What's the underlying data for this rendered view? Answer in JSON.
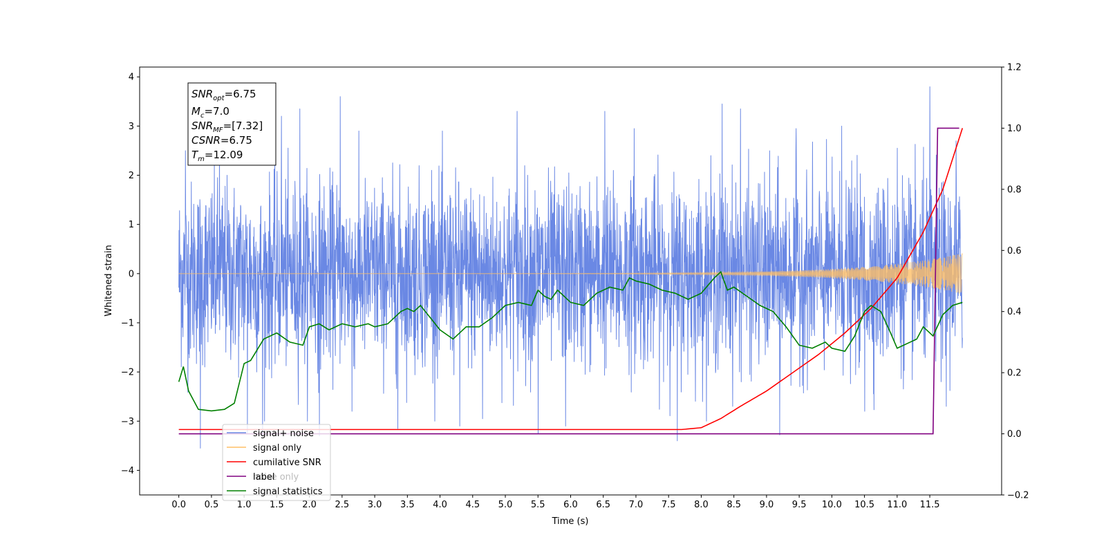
{
  "chart_data": {
    "type": "line",
    "xlabel": "Time (s)",
    "ylabel": "Whitened strain",
    "x_ticks": [
      "0.0",
      "0.5",
      "1.0",
      "1.5",
      "2.0",
      "2.5",
      "3.0",
      "3.5",
      "4.0",
      "4.5",
      "5.0",
      "5.5",
      "6.0",
      "6.5",
      "7.0",
      "7.5",
      "8.0",
      "8.5",
      "9.0",
      "9.5",
      "10.0",
      "10.5",
      "11.0",
      "11.5"
    ],
    "xlim": [
      -0.6,
      12.6
    ],
    "ylim_left": [
      -4.5,
      4.2
    ],
    "y_ticks_left": [
      "−4",
      "−3",
      "−2",
      "−1",
      "0",
      "1",
      "2",
      "3",
      "4"
    ],
    "ylim_right": [
      -0.2,
      1.2
    ],
    "y_ticks_right": [
      "−0.2",
      "0.0",
      "0.2",
      "0.4",
      "0.6",
      "0.8",
      "1.0",
      "1.2"
    ],
    "info_box": {
      "snr_opt": {
        "sym": "SNR",
        "sub": "opt",
        "value": "=6.75"
      },
      "mc": {
        "sym": "M",
        "sub": "c",
        "value": "=7.0"
      },
      "snr_mf": {
        "sym": "SNR",
        "sub": "MF",
        "value": "=[7.32]"
      },
      "csnr": {
        "sym": "CSNR",
        "sub": "",
        "value": "=6.75"
      },
      "tm": {
        "sym": "T",
        "sub": "m",
        "value": "=12.09"
      }
    },
    "legend": {
      "placement": "lower-left",
      "entries": [
        {
          "label": "signal+ noise",
          "color": "#6a88e4"
        },
        {
          "label": "signal only",
          "color": "#ffbf66"
        },
        {
          "label": "cumilative SNR",
          "color": "#ff0000"
        },
        {
          "label": "label",
          "color": "#800080"
        },
        {
          "label": "signal statistics",
          "color": "#008000"
        }
      ],
      "behind_text": [
        {
          "label": "noise only",
          "color": "#aaaaaa"
        }
      ]
    },
    "series": [
      {
        "name": "signal+ noise",
        "axis": "left",
        "color": "#6a88e4",
        "t_start": 0.0,
        "t_end": 12.0,
        "std": 0.92,
        "peaks": [
          [
            0.1,
            2.5
          ],
          [
            0.33,
            -3.55
          ],
          [
            0.62,
            2.95
          ],
          [
            1.05,
            -3.25
          ],
          [
            1.28,
            -3.3
          ],
          [
            1.57,
            3.2
          ],
          [
            1.85,
            3.35
          ],
          [
            2.15,
            -3.3
          ],
          [
            2.47,
            3.6
          ],
          [
            2.65,
            -2.8
          ],
          [
            3.35,
            -3.15
          ],
          [
            3.87,
            2.1
          ],
          [
            4.3,
            -3.1
          ],
          [
            4.65,
            -2.95
          ],
          [
            5.18,
            3.3
          ],
          [
            5.5,
            -3.25
          ],
          [
            5.92,
            -3.1
          ],
          [
            6.52,
            3.3
          ],
          [
            6.97,
            2.95
          ],
          [
            7.63,
            -3.4
          ],
          [
            8.32,
            3.45
          ],
          [
            8.6,
            3.35
          ],
          [
            9.2,
            -3.28
          ],
          [
            9.45,
            2.95
          ],
          [
            10.15,
            3.0
          ],
          [
            10.5,
            -2.8
          ],
          [
            11.0,
            2.55
          ],
          [
            11.5,
            3.8
          ],
          [
            11.75,
            -2.7
          ],
          [
            11.9,
            2.7
          ]
        ]
      },
      {
        "name": "signal only",
        "axis": "left",
        "color": "#ffbf66",
        "t_start": 0.0,
        "t_end": 12.0
      },
      {
        "name": "cumilative SNR",
        "axis": "right",
        "color": "#ff0000",
        "x": [
          0.0,
          7.7,
          8.0,
          8.3,
          8.6,
          9.0,
          9.4,
          9.8,
          10.2,
          10.6,
          11.0,
          11.4,
          11.7,
          12.0
        ],
        "y": [
          0.014,
          0.014,
          0.02,
          0.05,
          0.09,
          0.14,
          0.2,
          0.26,
          0.33,
          0.41,
          0.51,
          0.66,
          0.8,
          1.0
        ]
      },
      {
        "name": "label",
        "axis": "right",
        "color": "#800080",
        "x": [
          0.0,
          11.55,
          11.62,
          11.95
        ],
        "y": [
          0.0,
          0.0,
          1.0,
          1.0
        ]
      },
      {
        "name": "signal statistics",
        "axis": "right",
        "color": "#008000",
        "x": [
          0.0,
          0.07,
          0.15,
          0.3,
          0.5,
          0.7,
          0.85,
          1.0,
          1.1,
          1.3,
          1.5,
          1.7,
          1.9,
          2.0,
          2.15,
          2.3,
          2.5,
          2.7,
          2.9,
          3.0,
          3.2,
          3.4,
          3.5,
          3.6,
          3.7,
          3.85,
          4.0,
          4.2,
          4.3,
          4.4,
          4.6,
          4.8,
          5.0,
          5.2,
          5.4,
          5.5,
          5.6,
          5.7,
          5.8,
          6.0,
          6.2,
          6.4,
          6.6,
          6.8,
          6.9,
          7.0,
          7.2,
          7.4,
          7.6,
          7.8,
          8.0,
          8.2,
          8.3,
          8.4,
          8.5,
          8.7,
          8.9,
          9.1,
          9.3,
          9.5,
          9.7,
          9.9,
          10.0,
          10.2,
          10.35,
          10.5,
          10.6,
          10.75,
          10.9,
          11.0,
          11.2,
          11.3,
          11.4,
          11.55,
          11.7,
          11.85,
          12.0
        ],
        "y": [
          0.17,
          0.22,
          0.14,
          0.08,
          0.075,
          0.08,
          0.1,
          0.23,
          0.24,
          0.31,
          0.33,
          0.3,
          0.29,
          0.35,
          0.36,
          0.34,
          0.36,
          0.35,
          0.36,
          0.35,
          0.36,
          0.4,
          0.41,
          0.4,
          0.42,
          0.38,
          0.34,
          0.31,
          0.33,
          0.35,
          0.35,
          0.38,
          0.42,
          0.43,
          0.42,
          0.47,
          0.45,
          0.44,
          0.47,
          0.43,
          0.42,
          0.46,
          0.48,
          0.47,
          0.51,
          0.5,
          0.49,
          0.47,
          0.46,
          0.44,
          0.46,
          0.51,
          0.53,
          0.47,
          0.48,
          0.45,
          0.42,
          0.4,
          0.35,
          0.29,
          0.28,
          0.3,
          0.28,
          0.27,
          0.32,
          0.4,
          0.42,
          0.4,
          0.33,
          0.28,
          0.3,
          0.31,
          0.35,
          0.32,
          0.39,
          0.42,
          0.43
        ]
      }
    ]
  }
}
